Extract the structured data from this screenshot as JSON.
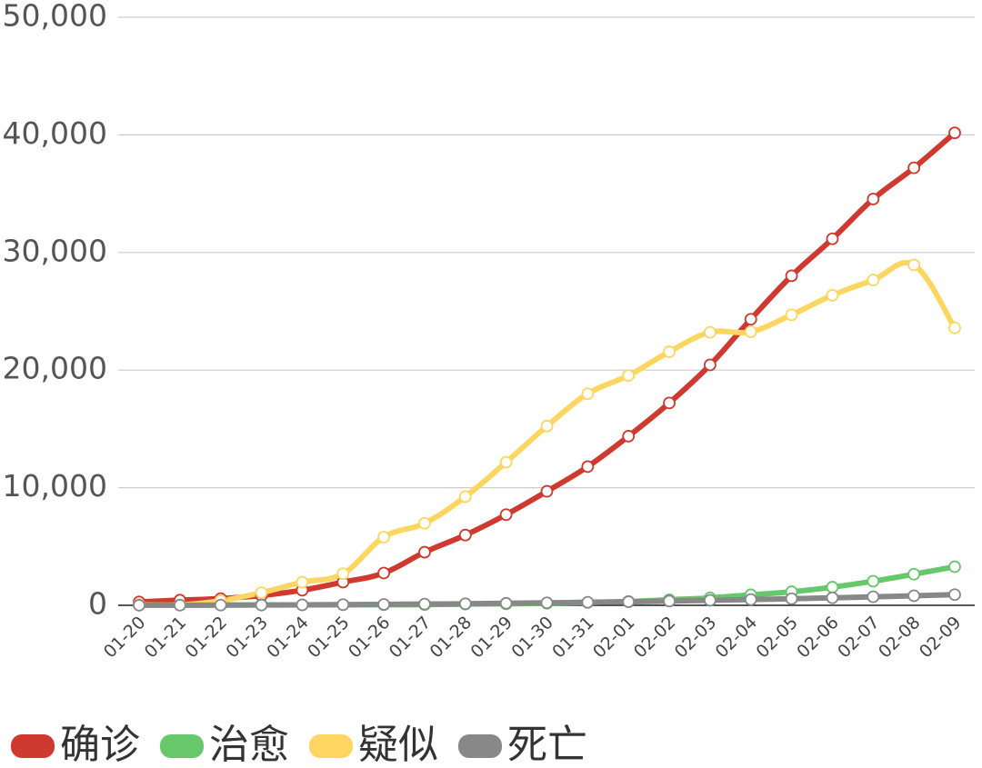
{
  "chart_data": {
    "type": "line",
    "categories": [
      "01-20",
      "01-21",
      "01-22",
      "01-23",
      "01-24",
      "01-25",
      "01-26",
      "01-27",
      "01-28",
      "01-29",
      "01-30",
      "01-31",
      "02-01",
      "02-02",
      "02-03",
      "02-04",
      "02-05",
      "02-06",
      "02-07",
      "02-08",
      "02-09"
    ],
    "series": [
      {
        "name": "确诊",
        "color": "#d0392f",
        "values": [
          291,
          440,
          571,
          830,
          1287,
          1975,
          2744,
          4515,
          5974,
          7711,
          9692,
          11791,
          14380,
          17205,
          20438,
          24324,
          28018,
          31161,
          34546,
          37198,
          40171
        ]
      },
      {
        "name": "治愈",
        "color": "#66c86a",
        "values": [
          25,
          25,
          28,
          34,
          38,
          49,
          51,
          60,
          103,
          124,
          171,
          243,
          328,
          475,
          632,
          892,
          1153,
          1540,
          2050,
          2649,
          3281
        ]
      },
      {
        "name": "疑似",
        "color": "#fcd660",
        "values": [
          54,
          37,
          393,
          1072,
          1965,
          2684,
          5794,
          6973,
          9239,
          12167,
          15238,
          17988,
          19544,
          21558,
          23214,
          23260,
          24702,
          26359,
          27657,
          28942,
          23589
        ]
      },
      {
        "name": "死亡",
        "color": "#888888",
        "values": [
          6,
          9,
          17,
          25,
          41,
          56,
          80,
          106,
          132,
          170,
          213,
          259,
          304,
          361,
          425,
          490,
          563,
          636,
          722,
          811,
          908
        ]
      }
    ],
    "ylim": [
      0,
      50000
    ],
    "yticks": [
      0,
      {
        "value": 10000,
        "label": "10,000"
      },
      {
        "value": 20000,
        "label": "20,000"
      },
      {
        "value": 30000,
        "label": "30,000"
      },
      {
        "value": 40000,
        "label": "40,000"
      },
      {
        "value": 50000,
        "label": "50,000"
      }
    ],
    "grid": true
  }
}
